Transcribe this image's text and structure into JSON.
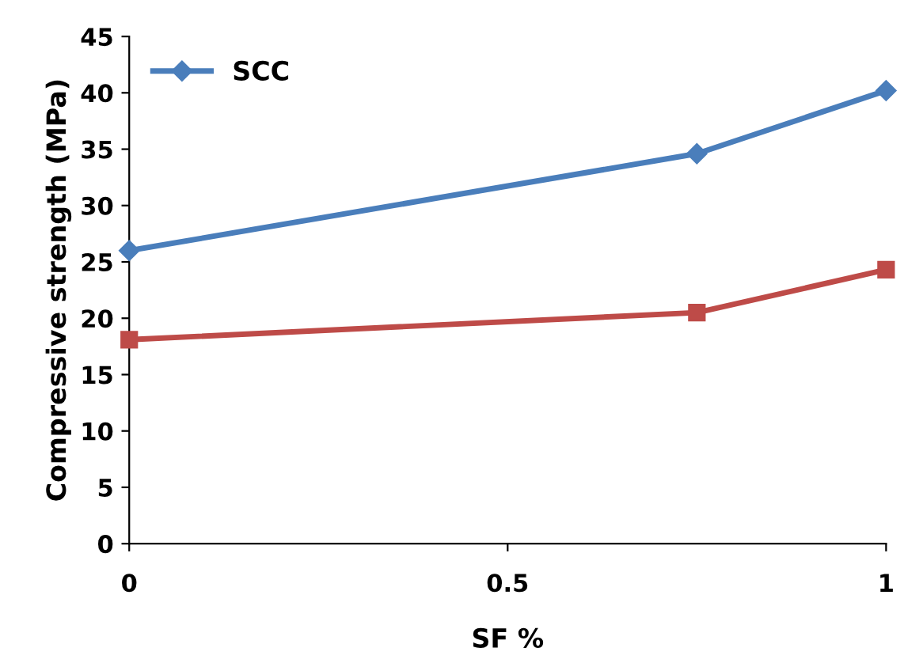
{
  "chart_data": {
    "type": "line",
    "xlabel": "SF %",
    "ylabel": "Compressive strength (MPa)",
    "x": [
      0,
      0.75,
      1
    ],
    "series": [
      {
        "name": "SCC",
        "color": "#4a7ebb",
        "marker": "diamond",
        "values": [
          26,
          34.6,
          40.2
        ]
      },
      {
        "color": "#be4b48",
        "marker": "square",
        "values": [
          18.1,
          20.5,
          24.3
        ]
      }
    ],
    "xlim": [
      0,
      1
    ],
    "xticks": [
      0,
      0.5,
      1
    ],
    "ylim": [
      0,
      45
    ],
    "yticks": [
      0,
      5,
      10,
      15,
      20,
      25,
      30,
      35,
      40,
      45
    ],
    "grid": false,
    "legend": "top left",
    "line_style": "solid"
  }
}
